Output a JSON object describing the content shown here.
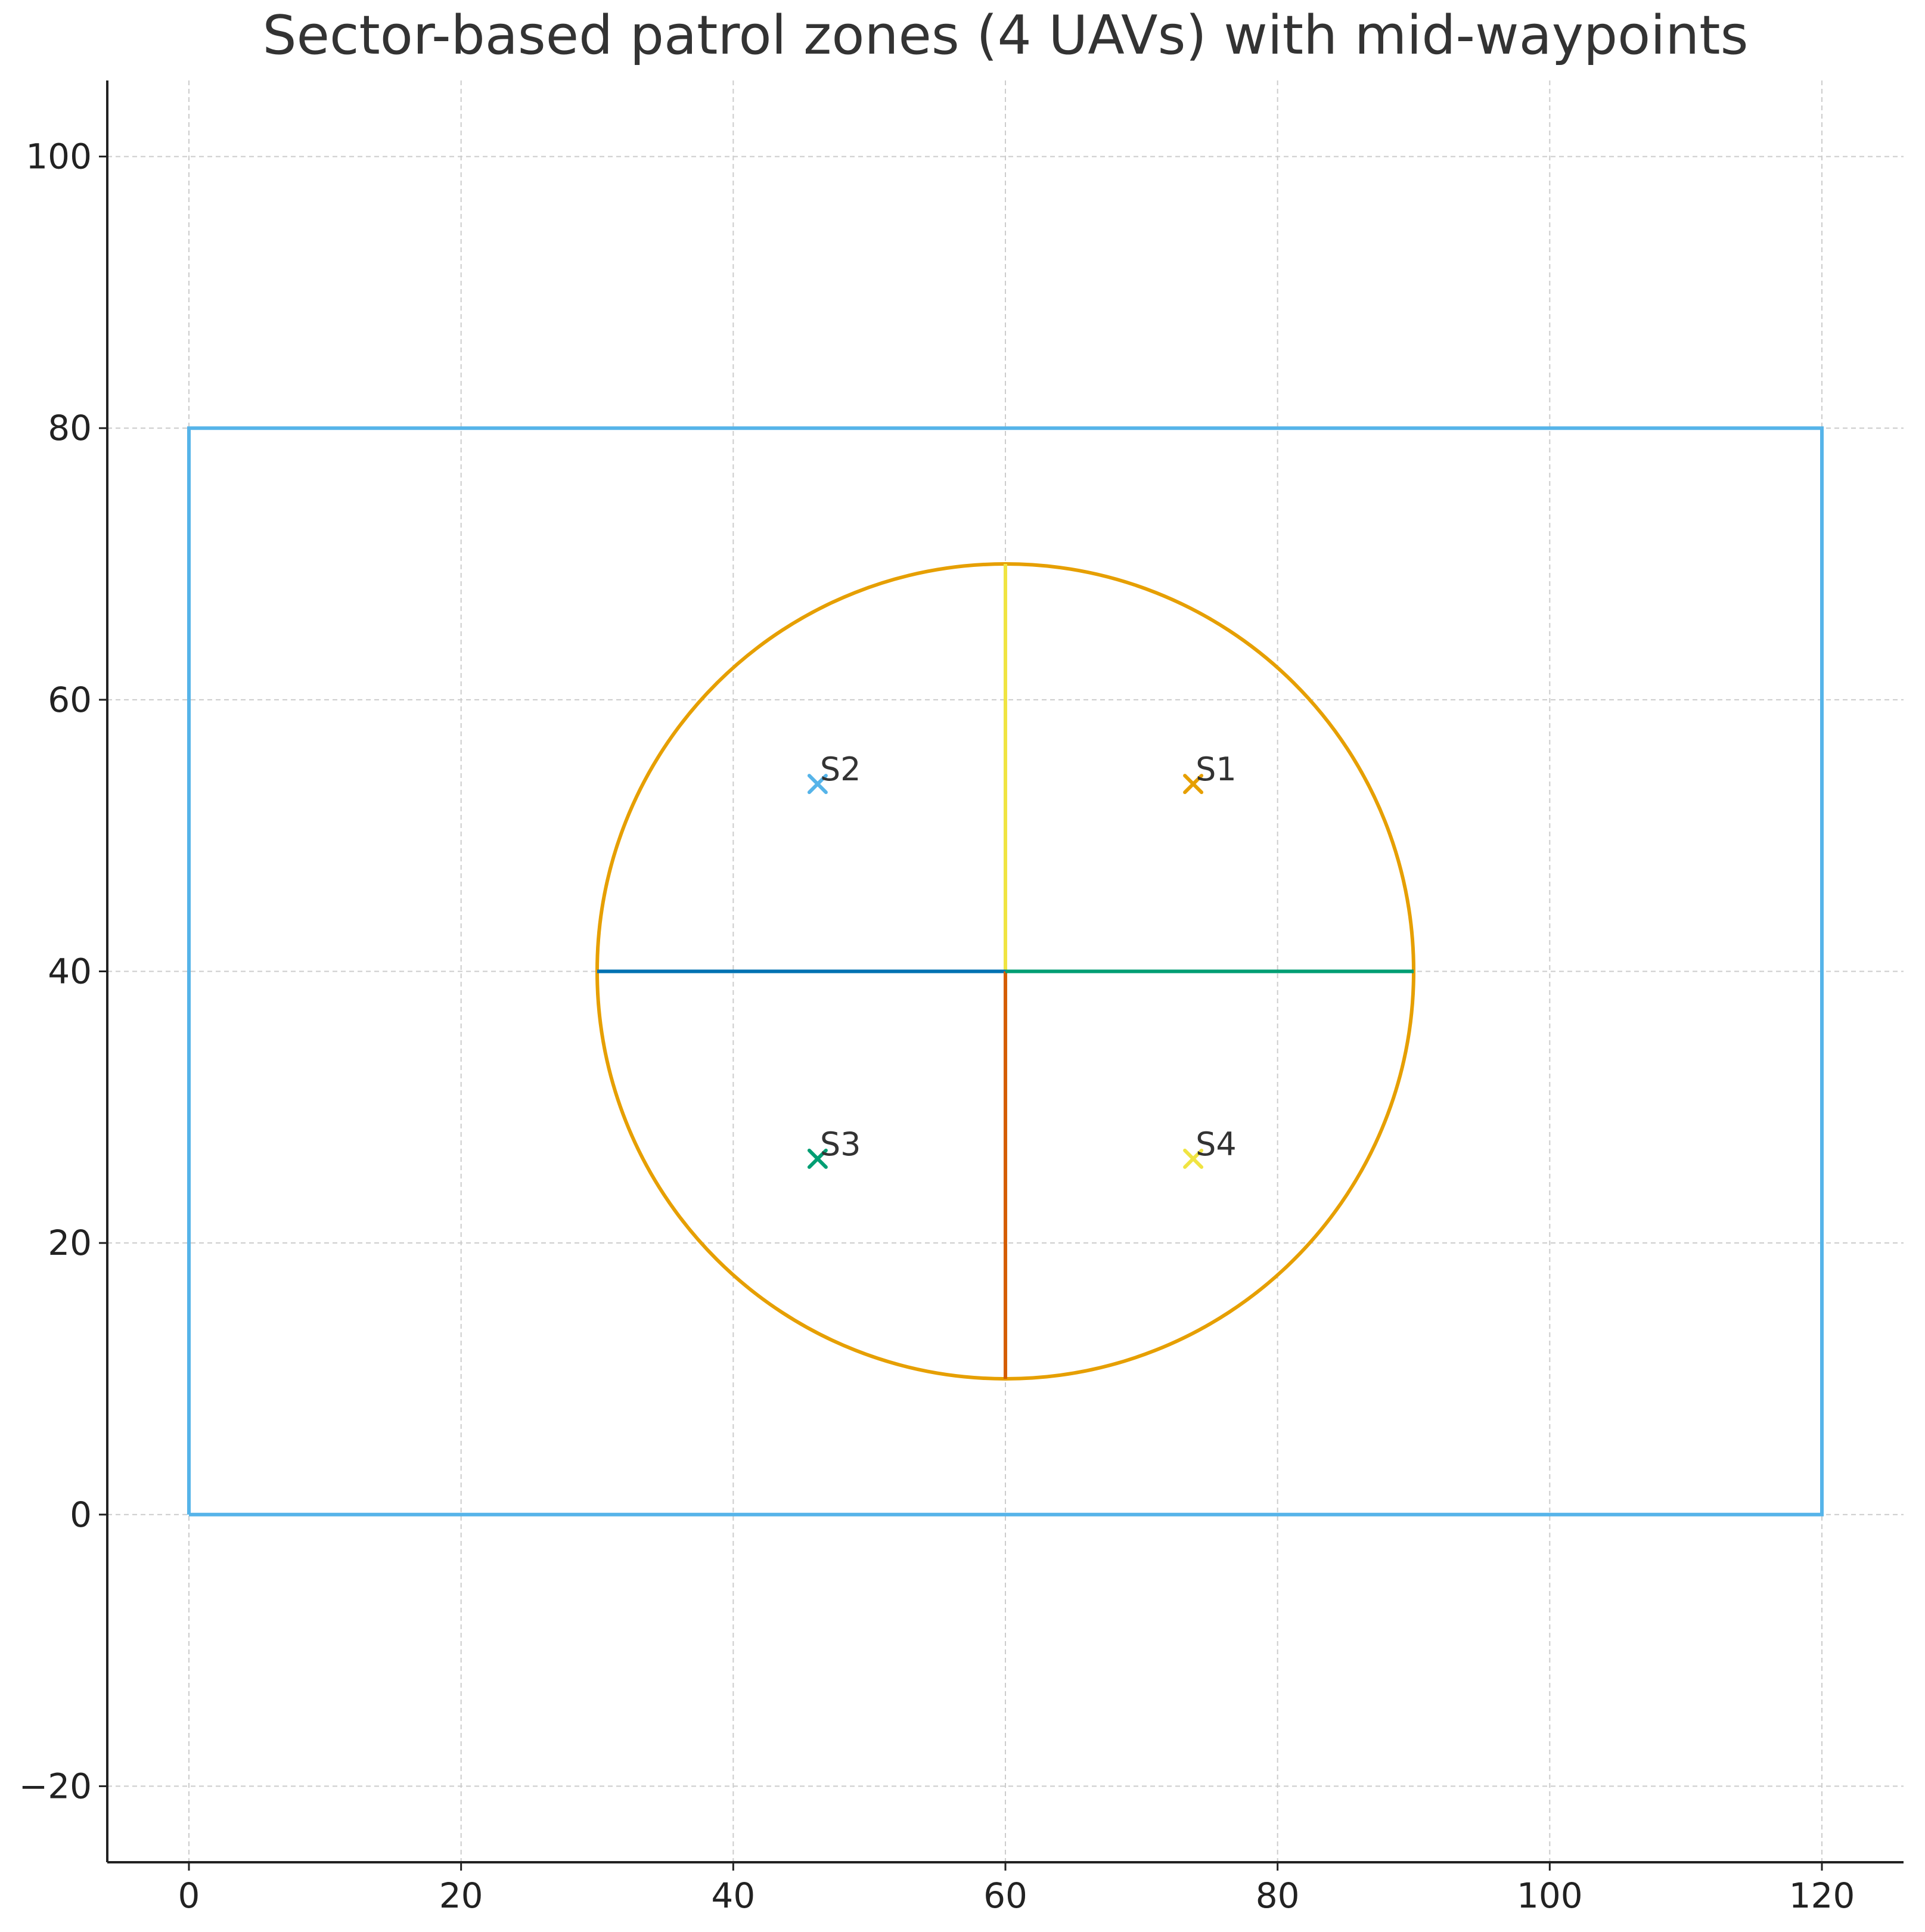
{
  "chart_data": {
    "type": "line",
    "title": "Sector-based patrol zones (4 UAVs) with mid-waypoints",
    "xlabel": "",
    "ylabel": "",
    "xlim": [
      -6,
      126
    ],
    "ylim": [
      -25.6,
      105.6
    ],
    "xticks": [
      0,
      20,
      40,
      60,
      80,
      100,
      120
    ],
    "yticks": [
      -20,
      0,
      20,
      40,
      60,
      80,
      100
    ],
    "xtick_labels": [
      "0",
      "20",
      "40",
      "60",
      "80",
      "100",
      "120"
    ],
    "ytick_labels": [
      "−20",
      "0",
      "20",
      "40",
      "60",
      "80",
      "100"
    ],
    "grid": true,
    "boundary": {
      "x": [
        0,
        120,
        120,
        0,
        0
      ],
      "y": [
        0,
        0,
        80,
        80,
        0
      ],
      "color": "#56B4E9"
    },
    "circle": {
      "center": [
        60,
        40
      ],
      "radius": 30,
      "color": "#E69F00"
    },
    "sector_lines": [
      {
        "x": [
          60,
          60
        ],
        "y": [
          40,
          70
        ],
        "color": "#F0E442"
      },
      {
        "x": [
          60,
          30
        ],
        "y": [
          40,
          40
        ],
        "color": "#0072B2"
      },
      {
        "x": [
          60,
          60
        ],
        "y": [
          40,
          10
        ],
        "color": "#D55E00"
      },
      {
        "x": [
          60,
          90
        ],
        "y": [
          40,
          40
        ],
        "color": "#009E73"
      }
    ],
    "waypoints": [
      {
        "label": "S1",
        "x": 73.8,
        "y": 53.8,
        "color": "#E69F00"
      },
      {
        "label": "S2",
        "x": 46.2,
        "y": 53.8,
        "color": "#56B4E9"
      },
      {
        "label": "S3",
        "x": 46.2,
        "y": 26.2,
        "color": "#009E73"
      },
      {
        "label": "S4",
        "x": 73.8,
        "y": 26.2,
        "color": "#F0E442"
      }
    ]
  }
}
